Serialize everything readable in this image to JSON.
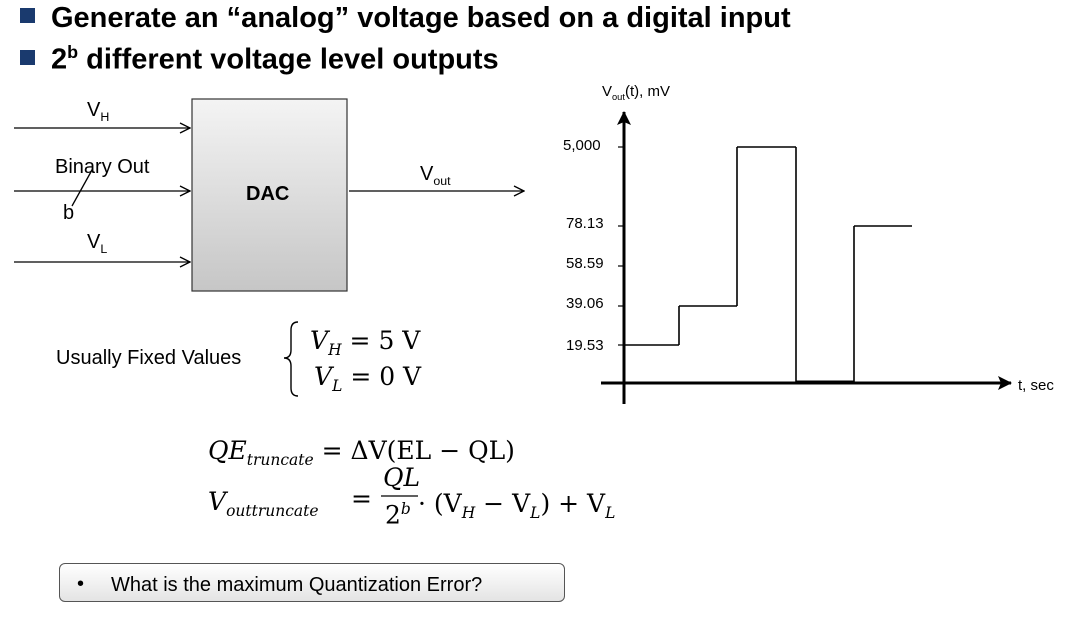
{
  "bullets": [
    "Generate an “analog” voltage based on a digital input",
    "2",
    "b",
    " different voltage level outputs"
  ],
  "dac": {
    "block_label": "DAC",
    "inputs": {
      "vh": "V",
      "vh_sub": "H",
      "binary": "Binary Out",
      "bits": "b",
      "vl": "V",
      "vl_sub": "L"
    },
    "output": "V",
    "output_sub": "out"
  },
  "fixed_values": {
    "label": "Usually Fixed Values",
    "vh_eq": "= 5 V",
    "vl_eq": "= 0 V"
  },
  "equations": {
    "qe_lhs": "QE",
    "qe_sub": "truncate",
    "qe_rhs": "= ΔV(EL − QL)",
    "vout_lhs": "V",
    "vout_sub1": "out",
    "vout_sub2": "truncate",
    "frac_num": "QL",
    "frac_den": "2",
    "frac_den_sup": "b",
    "vout_rhs": "· (V",
    "vout_rhs_h": "H",
    "vout_rhs_mid": " − V",
    "vout_rhs_l": "L",
    "vout_rhs_end": ") + V",
    "vout_rhs_l2": "L"
  },
  "chart_data": {
    "type": "step",
    "ylabel": "V",
    "ylabel_sub": "out",
    "ylabel_tail": "(t), mV",
    "xlabel": "t, sec",
    "y_tick_labels": [
      "5,000",
      "78.13",
      "58.59",
      "39.06",
      "19.53"
    ],
    "steps": [
      19.53,
      39.06,
      5000,
      0,
      78.13
    ]
  },
  "callout": {
    "bullet": "•",
    "question": "What is the maximum Quantization Error?"
  }
}
